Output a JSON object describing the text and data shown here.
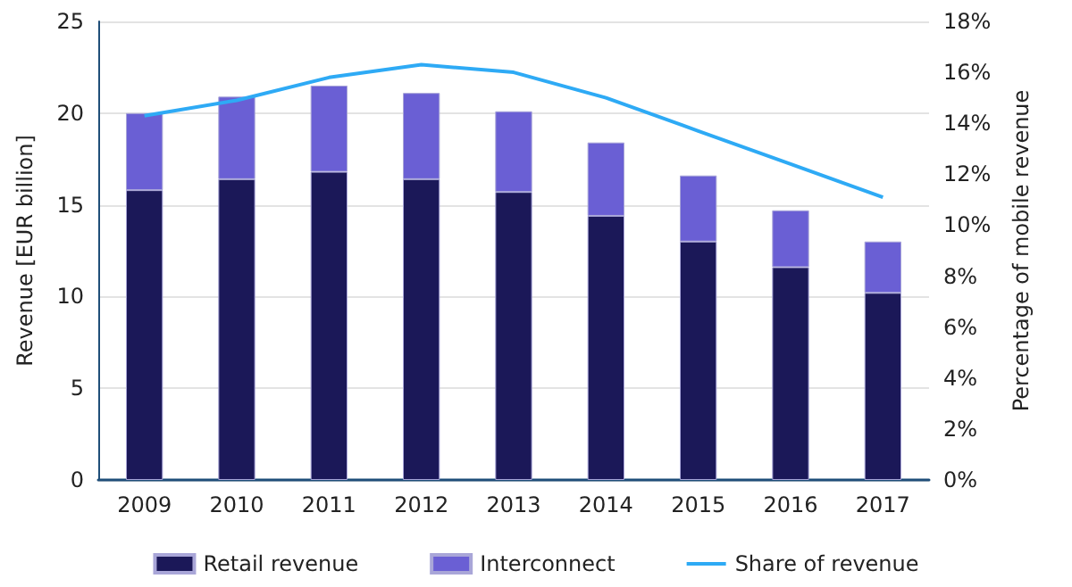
{
  "chart_data": {
    "type": "bar",
    "stacked": true,
    "categories": [
      "2009",
      "2010",
      "2011",
      "2012",
      "2013",
      "2014",
      "2015",
      "2016",
      "2017"
    ],
    "ylabel": "Revenue [EUR billion]",
    "y2label": "Percentage of mobile revenue",
    "ylim": [
      0,
      25
    ],
    "yticks": [
      0,
      5,
      10,
      15,
      20,
      25
    ],
    "y2lim": [
      0,
      18
    ],
    "y2ticks": [
      {
        "value": 0,
        "label": "0%"
      },
      {
        "value": 2,
        "label": "2%"
      },
      {
        "value": 4,
        "label": "4%"
      },
      {
        "value": 6,
        "label": "6%"
      },
      {
        "value": 8,
        "label": "8%"
      },
      {
        "value": 10,
        "label": "10%"
      },
      {
        "value": 12,
        "label": "12%"
      },
      {
        "value": 14,
        "label": "14%"
      },
      {
        "value": 16,
        "label": "16%"
      },
      {
        "value": 18,
        "label": "18%"
      }
    ],
    "grid": "y",
    "legend": "bottom",
    "marker": "none",
    "series": [
      {
        "name": "Retail revenue",
        "color": "#1b1858",
        "values": [
          15.8,
          16.4,
          16.8,
          16.4,
          15.7,
          14.4,
          13.0,
          11.6,
          10.2
        ]
      },
      {
        "name": "Interconnect",
        "color": "#6a5fd4",
        "values": [
          4.2,
          4.5,
          4.7,
          4.7,
          4.4,
          4.0,
          3.6,
          3.1,
          2.8
        ]
      },
      {
        "name": "Share of revenue",
        "type": "line",
        "axis": "y2",
        "color": "#2eaaf5",
        "values": [
          14.3,
          14.9,
          15.8,
          16.3,
          16.0,
          15.0,
          13.7,
          12.4,
          11.1
        ]
      }
    ]
  }
}
